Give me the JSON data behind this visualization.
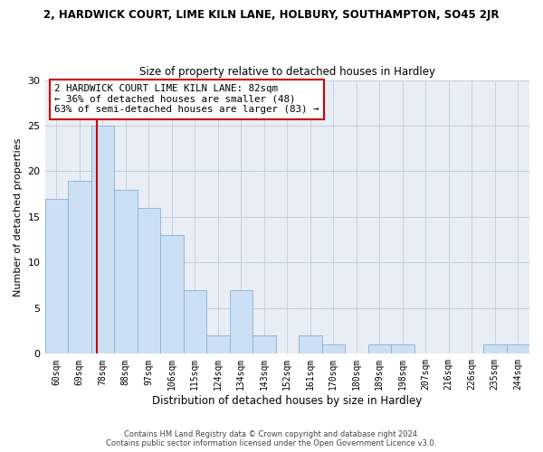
{
  "title": "2, HARDWICK COURT, LIME KILN LANE, HOLBURY, SOUTHAMPTON, SO45 2JR",
  "subtitle": "Size of property relative to detached houses in Hardley",
  "xlabel": "Distribution of detached houses by size in Hardley",
  "ylabel": "Number of detached properties",
  "bins": [
    "60sqm",
    "69sqm",
    "78sqm",
    "88sqm",
    "97sqm",
    "106sqm",
    "115sqm",
    "124sqm",
    "134sqm",
    "143sqm",
    "152sqm",
    "161sqm",
    "170sqm",
    "180sqm",
    "189sqm",
    "198sqm",
    "207sqm",
    "216sqm",
    "226sqm",
    "235sqm",
    "244sqm"
  ],
  "values": [
    17,
    19,
    25,
    18,
    16,
    13,
    7,
    2,
    7,
    2,
    0,
    2,
    1,
    0,
    1,
    1,
    0,
    0,
    0,
    1,
    1
  ],
  "bar_color": "#cce0f5",
  "bar_edge_color": "#8ab0d0",
  "highlight_line_color": "#cc0000",
  "ylim": [
    0,
    30
  ],
  "annotation_title": "2 HARDWICK COURT LIME KILN LANE: 82sqm",
  "annotation_line1": "← 36% of detached houses are smaller (48)",
  "annotation_line2": "63% of semi-detached houses are larger (83) →",
  "annotation_box_color": "#ffffff",
  "annotation_box_edge": "#cc0000",
  "footer_line1": "Contains HM Land Registry data © Crown copyright and database right 2024.",
  "footer_line2": "Contains public sector information licensed under the Open Government Licence v3.0.",
  "background_color": "#ffffff",
  "grid_color": "#c8d0dc"
}
